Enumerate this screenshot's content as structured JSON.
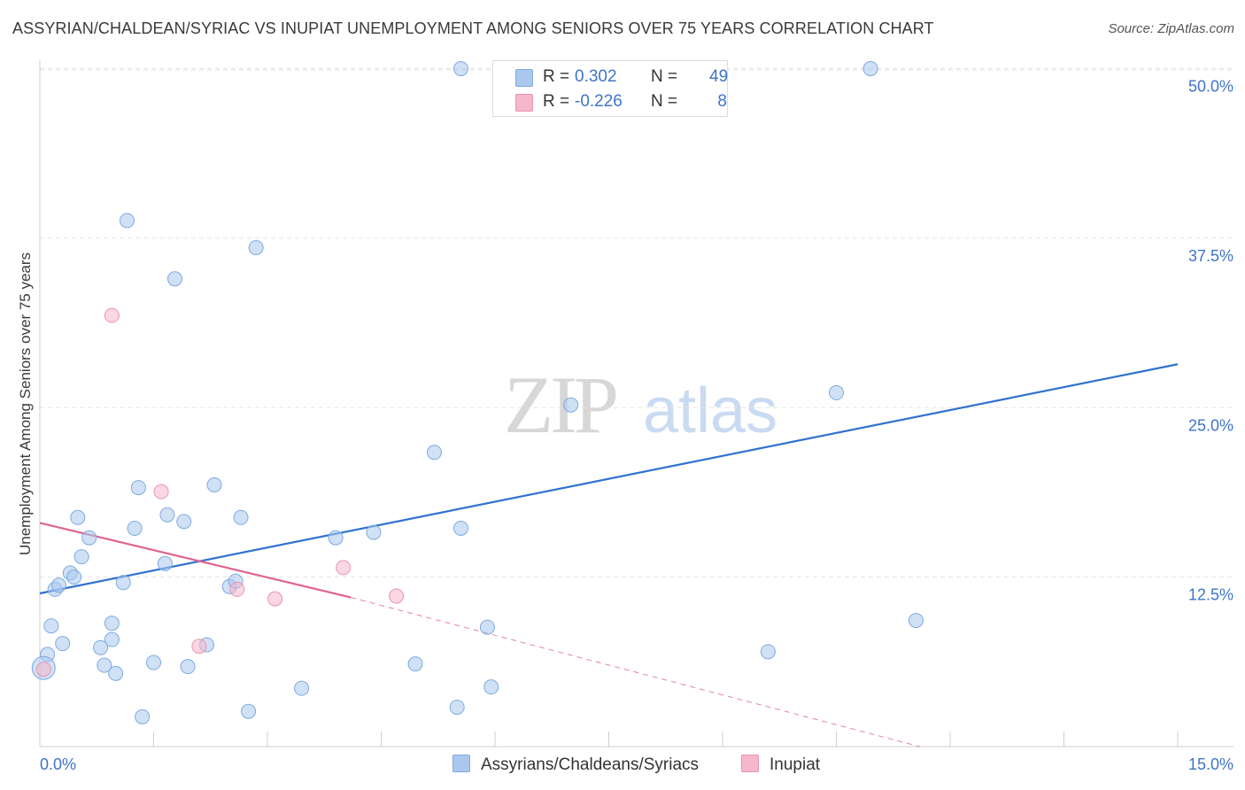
{
  "title": "ASSYRIAN/CHALDEAN/SYRIAC VS INUPIAT UNEMPLOYMENT AMONG SENIORS OVER 75 YEARS CORRELATION CHART",
  "source": "Source: ZipAtlas.com",
  "watermark": {
    "zip": "ZIP",
    "atlas": "atlas"
  },
  "stats": {
    "rows": [
      {
        "r_label": "R =",
        "r_value": "0.302",
        "n_label": "N =",
        "n_value": "49",
        "color": "#aac8ee"
      },
      {
        "r_label": "R =",
        "r_value": "-0.226",
        "n_label": "N =",
        "n_value": "8",
        "color": "#f6b7cb"
      }
    ]
  },
  "legend": {
    "items": [
      {
        "label": "Assyrians/Chaldeans/Syriacs",
        "color": "#aac8ee"
      },
      {
        "label": "Inupiat",
        "color": "#f6b7cb"
      }
    ]
  },
  "chart_data": {
    "type": "scatter",
    "title": "ASSYRIAN/CHALDEAN/SYRIAC VS INUPIAT UNEMPLOYMENT AMONG SENIORS OVER 75 YEARS CORRELATION CHART",
    "xlabel": "",
    "ylabel": "Unemployment Among Seniors over 75 years",
    "xlim": [
      0,
      15
    ],
    "ylim": [
      0,
      52
    ],
    "x_tick_labels": [
      {
        "value": 0,
        "label": "0.0%"
      },
      {
        "value": 15,
        "label": "15.0%"
      }
    ],
    "y_ticks": [
      {
        "value": 12.5,
        "label": "12.5%"
      },
      {
        "value": 25.0,
        "label": "25.0%"
      },
      {
        "value": 37.5,
        "label": "37.5%"
      },
      {
        "value": 50.0,
        "label": "50.0%"
      }
    ],
    "grid": true,
    "series": [
      {
        "name": "Assyrians/Chaldeans/Syriacs",
        "color": "#aac8ee",
        "stroke": "#7eaadf",
        "trend": {
          "x0": 0,
          "y0": 11.3,
          "x1": 15,
          "y1": 28.2,
          "color": "#2f72cf"
        },
        "points": [
          [
            0.1,
            6.8
          ],
          [
            0.15,
            8.9
          ],
          [
            0.2,
            11.6
          ],
          [
            0.25,
            11.9
          ],
          [
            0.3,
            7.6
          ],
          [
            0.4,
            12.8
          ],
          [
            0.45,
            12.5
          ],
          [
            0.5,
            16.9
          ],
          [
            0.55,
            14.0
          ],
          [
            0.65,
            15.4
          ],
          [
            0.8,
            7.3
          ],
          [
            0.85,
            6.0
          ],
          [
            0.95,
            9.1
          ],
          [
            0.95,
            7.9
          ],
          [
            1.0,
            5.4
          ],
          [
            1.1,
            12.1
          ],
          [
            1.15,
            38.8
          ],
          [
            1.25,
            16.1
          ],
          [
            1.3,
            19.1
          ],
          [
            1.35,
            2.2
          ],
          [
            1.5,
            6.2
          ],
          [
            1.65,
            13.5
          ],
          [
            1.68,
            17.1
          ],
          [
            1.78,
            34.5
          ],
          [
            1.9,
            16.6
          ],
          [
            1.95,
            5.9
          ],
          [
            2.2,
            7.5
          ],
          [
            2.3,
            19.3
          ],
          [
            2.5,
            11.8
          ],
          [
            2.58,
            12.2
          ],
          [
            2.65,
            16.9
          ],
          [
            2.75,
            2.6
          ],
          [
            2.85,
            36.8
          ],
          [
            3.45,
            4.3
          ],
          [
            3.9,
            15.4
          ],
          [
            4.4,
            15.8
          ],
          [
            4.95,
            6.1
          ],
          [
            5.2,
            21.7
          ],
          [
            5.5,
            2.9
          ],
          [
            5.55,
            16.1
          ],
          [
            5.55,
            50.0
          ],
          [
            5.9,
            8.8
          ],
          [
            5.95,
            4.4
          ],
          [
            7.0,
            25.2
          ],
          [
            9.6,
            7.0
          ],
          [
            10.5,
            26.1
          ],
          [
            10.95,
            50.0
          ],
          [
            11.55,
            9.3
          ],
          [
            0.05,
            5.8
          ]
        ]
      },
      {
        "name": "Inupiat",
        "color": "#f6b7cb",
        "stroke": "#e995b0",
        "trend": {
          "x0": 0,
          "y0": 16.5,
          "x1": 4.1,
          "y1": 11.0,
          "color": "#e0648f",
          "dash_to": {
            "x": 11.6,
            "y": 0.0
          }
        },
        "points": [
          [
            0.05,
            5.7
          ],
          [
            0.95,
            31.8
          ],
          [
            1.6,
            18.8
          ],
          [
            2.1,
            7.4
          ],
          [
            2.6,
            11.6
          ],
          [
            3.1,
            10.9
          ],
          [
            4.0,
            13.2
          ],
          [
            4.7,
            11.1
          ]
        ]
      }
    ]
  }
}
